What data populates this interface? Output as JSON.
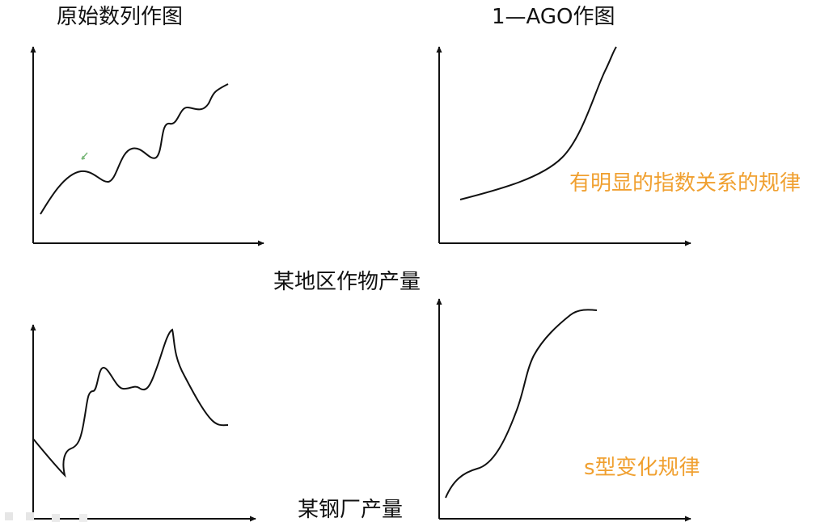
{
  "titles": {
    "original": "原始数列作图",
    "ago": "1—AGO作图"
  },
  "captions": {
    "crop": "某地区作物产量",
    "steel": "某钢厂产量"
  },
  "notes": {
    "exponential": "有明显的指数关系的规律",
    "s_curve": "s型变化规律"
  },
  "colors": {
    "axis": "#111111",
    "curve": "#111111",
    "note": "#f0a030",
    "cursor": "#7ab87a"
  }
}
